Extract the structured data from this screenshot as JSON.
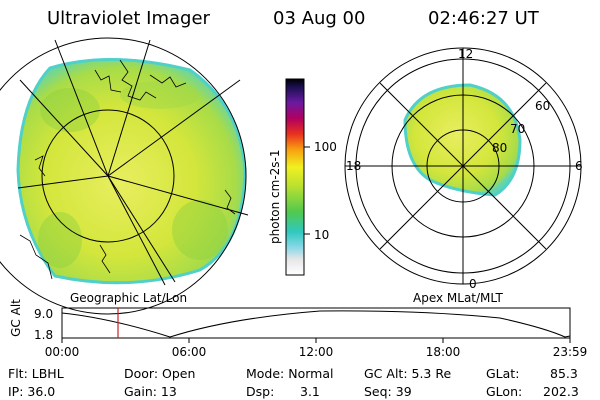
{
  "header": {
    "instrument": "Ultraviolet Imager",
    "date": "03 Aug 00",
    "time": "02:46:27 UT"
  },
  "colors": {
    "image_fill": "#d6e83c",
    "image_green": "#8fd040",
    "image_cyan": "#4fd0c8",
    "red_marker": "#cc2222"
  },
  "colorbar": {
    "unit_label": "photon cm-2s-1",
    "ticks": [
      "100",
      "10"
    ]
  },
  "geo_panel": {
    "caption": "Geographic Lat/Lon"
  },
  "polar_panel": {
    "caption": "Apex MLat/MLT",
    "mlt_labels": {
      "top": "12",
      "left": "18",
      "right": "6",
      "bottom": "0"
    },
    "lat_labels": [
      "60",
      "70",
      "80"
    ]
  },
  "altitude_plot": {
    "ylabel": "GC Alt",
    "yticks": [
      "9.0",
      "1.8"
    ],
    "xticks": [
      "00:00",
      "06:00",
      "12:00",
      "18:00",
      "23:59"
    ]
  },
  "info": {
    "flt": "Flt: LBHL",
    "ip": "IP: 36.0",
    "door": "Door: Open",
    "gain": "Gain: 13",
    "mode": "Mode: Normal",
    "dsp": "Dsp:",
    "dsp_val": "3.1",
    "gcalt": "GC Alt: 5.3 Re",
    "seq": "Seq: 39",
    "glat": "GLat:",
    "glat_val": "85.3",
    "glon": "GLon:",
    "glon_val": "202.3"
  }
}
